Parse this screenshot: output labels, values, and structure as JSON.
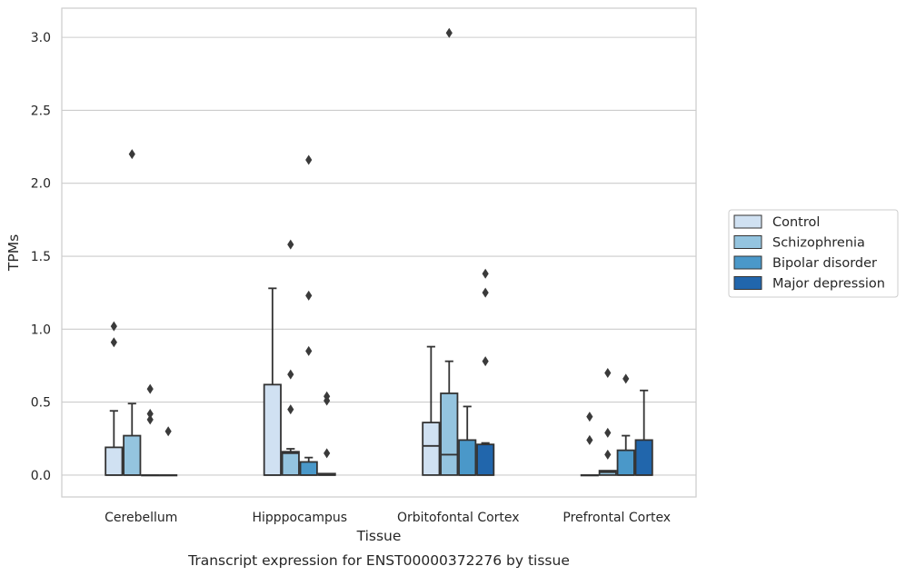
{
  "chart_data": {
    "type": "box",
    "ylabel": "TPMs",
    "xlabel": "Tissue",
    "caption": "Transcript expression for ENST00000372276 by tissue",
    "ylim": [
      -0.15,
      3.2
    ],
    "yticks": [
      0.0,
      0.5,
      1.0,
      1.5,
      2.0,
      2.5,
      3.0
    ],
    "ytick_labels": [
      "0.0",
      "0.5",
      "1.0",
      "1.5",
      "2.0",
      "2.5",
      "3.0"
    ],
    "grid": true,
    "legend_position": "right",
    "categories": [
      "Cerebellum",
      "Hipppocampus",
      "Orbitofontal Cortex",
      "Prefrontal Cortex"
    ],
    "series": [
      {
        "name": "Control",
        "color": "#d0e1f2",
        "boxes": [
          {
            "q1": 0.0,
            "median": 0.0,
            "q3": 0.19,
            "whisker_low": 0.0,
            "whisker_high": 0.44,
            "outliers": [
              0.91,
              1.02
            ]
          },
          {
            "q1": 0.0,
            "median": 0.0,
            "q3": 0.62,
            "whisker_low": 0.0,
            "whisker_high": 1.28,
            "outliers": []
          },
          {
            "q1": 0.0,
            "median": 0.2,
            "q3": 0.36,
            "whisker_low": 0.0,
            "whisker_high": 0.88,
            "outliers": []
          },
          {
            "q1": 0.0,
            "median": 0.0,
            "q3": 0.0,
            "whisker_low": 0.0,
            "whisker_high": 0.0,
            "outliers": [
              0.24,
              0.4
            ]
          }
        ]
      },
      {
        "name": "Schizophrenia",
        "color": "#94c4df",
        "boxes": [
          {
            "q1": 0.0,
            "median": 0.0,
            "q3": 0.27,
            "whisker_low": 0.0,
            "whisker_high": 0.49,
            "outliers": [
              2.2
            ]
          },
          {
            "q1": 0.0,
            "median": 0.15,
            "q3": 0.16,
            "whisker_low": 0.0,
            "whisker_high": 0.18,
            "outliers": [
              0.45,
              0.69,
              1.58
            ]
          },
          {
            "q1": 0.0,
            "median": 0.14,
            "q3": 0.56,
            "whisker_low": 0.0,
            "whisker_high": 0.78,
            "outliers": [
              3.03
            ]
          },
          {
            "q1": 0.0,
            "median": 0.02,
            "q3": 0.03,
            "whisker_low": 0.0,
            "whisker_high": 0.03,
            "outliers": [
              0.14,
              0.29,
              0.7
            ]
          }
        ]
      },
      {
        "name": "Bipolar disorder",
        "color": "#4a98c9",
        "boxes": [
          {
            "q1": 0.0,
            "median": 0.0,
            "q3": 0.0,
            "whisker_low": 0.0,
            "whisker_high": 0.0,
            "outliers": [
              0.38,
              0.42,
              0.59
            ]
          },
          {
            "q1": 0.0,
            "median": 0.0,
            "q3": 0.09,
            "whisker_low": 0.0,
            "whisker_high": 0.12,
            "outliers": [
              0.85,
              1.23,
              2.16
            ]
          },
          {
            "q1": 0.0,
            "median": 0.0,
            "q3": 0.24,
            "whisker_low": 0.0,
            "whisker_high": 0.47,
            "outliers": []
          },
          {
            "q1": 0.0,
            "median": 0.0,
            "q3": 0.17,
            "whisker_low": 0.0,
            "whisker_high": 0.27,
            "outliers": [
              0.66
            ]
          }
        ]
      },
      {
        "name": "Major depression",
        "color": "#2166ac",
        "boxes": [
          {
            "q1": 0.0,
            "median": 0.0,
            "q3": 0.0,
            "whisker_low": 0.0,
            "whisker_high": 0.0,
            "outliers": [
              0.3
            ]
          },
          {
            "q1": 0.0,
            "median": 0.0,
            "q3": 0.01,
            "whisker_low": 0.0,
            "whisker_high": 0.01,
            "outliers": [
              0.15,
              0.51,
              0.54
            ]
          },
          {
            "q1": 0.0,
            "median": 0.0,
            "q3": 0.21,
            "whisker_low": 0.0,
            "whisker_high": 0.22,
            "outliers": [
              0.78,
              1.25,
              1.38
            ]
          },
          {
            "q1": 0.0,
            "median": 0.0,
            "q3": 0.24,
            "whisker_low": 0.0,
            "whisker_high": 0.58,
            "outliers": []
          }
        ]
      }
    ]
  }
}
